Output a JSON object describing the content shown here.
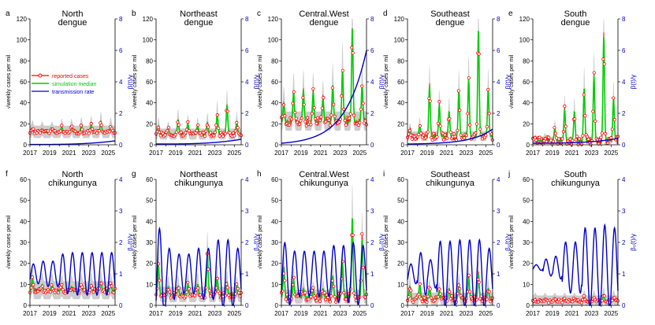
{
  "figure": {
    "colors": {
      "reported": "#ff0000",
      "marker_fill": "#ffffff",
      "median": "#00cc00",
      "transmission": "#0000cc",
      "band": "#cccccc",
      "axis": "#000000",
      "right_axis": "#0000cc"
    },
    "legend": {
      "reported": "reported cases",
      "median": "simulation median",
      "transmission": "transmission rate"
    }
  },
  "chart_data": [
    {
      "type": "line",
      "letter": "a",
      "region": "North",
      "disease": "dengue",
      "xlabel": "",
      "ylabel": "√weekly cases per mil",
      "ylabel_right": "β(t)/γ",
      "xticks": [
        "2017",
        "2019",
        "2021",
        "2023",
        "2025"
      ],
      "xlim": [
        2017,
        2025.7
      ],
      "ylim": [
        0,
        120
      ],
      "yticks": [
        0,
        20,
        40,
        60,
        80,
        100,
        120
      ],
      "ylim_right": [
        0,
        8
      ],
      "yticks_right": [
        0,
        2,
        4,
        6,
        8
      ],
      "series": [
        {
          "name": "reported cases",
          "base": 12,
          "amp": [
            4,
            3,
            3,
            5,
            5,
            6,
            7,
            10,
            6
          ],
          "noise": 1.5
        },
        {
          "name": "transmission rate",
          "shape": "flat",
          "start": 0.02,
          "end": 0.25
        }
      ]
    },
    {
      "type": "line",
      "letter": "b",
      "region": "Northeast",
      "disease": "dengue",
      "xlabel": "",
      "ylabel": "√weekly cases per mil",
      "ylabel_right": "β(t)/γ",
      "xticks": [
        "2017",
        "2019",
        "2021",
        "2023",
        "2025"
      ],
      "xlim": [
        2017,
        2025.7
      ],
      "ylim": [
        0,
        120
      ],
      "yticks": [
        0,
        20,
        40,
        60,
        80,
        100,
        120
      ],
      "ylim_right": [
        0,
        8
      ],
      "yticks_right": [
        0,
        2,
        4,
        6,
        8
      ],
      "series": [
        {
          "name": "reported cases",
          "base": 10,
          "amp": [
            8,
            5,
            14,
            10,
            8,
            11,
            20,
            28,
            12
          ],
          "noise": 2
        },
        {
          "name": "transmission rate",
          "shape": "flat",
          "start": 0.05,
          "end": 0.35
        }
      ]
    },
    {
      "type": "line",
      "letter": "c",
      "region": "Central.West",
      "disease": "dengue",
      "xlabel": "",
      "ylabel": "√weekly cases per mil",
      "ylabel_right": "β(t)/γ",
      "xticks": [
        "2017",
        "2019",
        "2021",
        "2023",
        "2025"
      ],
      "xlim": [
        2017,
        2025.7
      ],
      "ylim": [
        0,
        120
      ],
      "yticks": [
        0,
        20,
        40,
        60,
        80,
        100,
        120
      ],
      "ylim_right": [
        0,
        8
      ],
      "yticks_right": [
        0,
        2,
        4,
        6,
        8
      ],
      "series": [
        {
          "name": "reported cases",
          "base": 22,
          "amp": [
            18,
            28,
            30,
            28,
            22,
            35,
            50,
            90,
            35
          ],
          "noise": 4
        },
        {
          "name": "transmission rate",
          "shape": "exp",
          "start": 0.1,
          "end": 6.0
        }
      ]
    },
    {
      "type": "line",
      "letter": "d",
      "region": "Southeast",
      "disease": "dengue",
      "xlabel": "",
      "ylabel": "√weekly cases per mil",
      "ylabel_right": "β(t)/γ",
      "xticks": [
        "2017",
        "2019",
        "2021",
        "2023",
        "2025"
      ],
      "xlim": [
        2017,
        2025.7
      ],
      "ylim": [
        0,
        120
      ],
      "yticks": [
        0,
        20,
        40,
        60,
        80,
        100,
        120
      ],
      "ylim_right": [
        0,
        8
      ],
      "yticks_right": [
        0,
        2,
        4,
        6,
        8
      ],
      "series": [
        {
          "name": "reported cases",
          "base": 8,
          "amp": [
            6,
            10,
            48,
            30,
            24,
            44,
            55,
            102,
            45
          ],
          "noise": 4
        },
        {
          "name": "transmission rate",
          "shape": "exp",
          "start": 0.05,
          "end": 1.0
        }
      ]
    },
    {
      "type": "line",
      "letter": "e",
      "region": "South",
      "disease": "dengue",
      "xlabel": "",
      "ylabel": "√weekly cases per mil",
      "ylabel_right": "β(t)/γ",
      "xticks": [
        "2017",
        "2019",
        "2021",
        "2023",
        "2025"
      ],
      "xlim": [
        2017,
        2025.7
      ],
      "ylim": [
        0,
        120
      ],
      "yticks": [
        0,
        20,
        40,
        60,
        80,
        100,
        120
      ],
      "ylim_right": [
        0,
        8
      ],
      "yticks_right": [
        0,
        2,
        4,
        6,
        8
      ],
      "series": [
        {
          "name": "reported cases",
          "base": 4,
          "amp": [
            2,
            3,
            12,
            30,
            28,
            50,
            62,
            100,
            40
          ],
          "noise": 4
        },
        {
          "name": "transmission rate",
          "shape": "flat",
          "start": 0.1,
          "end": 0.4
        }
      ]
    },
    {
      "type": "line",
      "letter": "f",
      "region": "North",
      "disease": "chikungunya",
      "xlabel": "",
      "ylabel": "√weekly cases per mil",
      "ylabel_right": "β₀(t)/γ",
      "xticks": [
        "2017",
        "2019",
        "2021",
        "2023",
        "2025"
      ],
      "xlim": [
        2017,
        2025.7
      ],
      "ylim": [
        0,
        60
      ],
      "yticks": [
        0,
        10,
        20,
        30,
        40,
        50,
        60
      ],
      "ylim_right": [
        0,
        4
      ],
      "yticks_right": [
        0,
        1,
        2,
        3,
        4
      ],
      "series": [
        {
          "name": "reported cases",
          "base": 7,
          "amp": [
            6,
            3,
            3,
            2,
            2,
            3,
            3,
            4,
            3
          ],
          "noise": 1.2
        },
        {
          "name": "transmission rate",
          "shape": "osc",
          "base": 1.0,
          "amp": [
            0.35,
            0.45,
            0.45,
            0.7,
            0.75,
            0.75,
            0.75,
            0.75,
            0.75
          ]
        }
      ]
    },
    {
      "type": "line",
      "letter": "g",
      "region": "Northeast",
      "disease": "chikungunya",
      "xlabel": "",
      "ylabel": "√weekly cases per mil",
      "ylabel_right": "β₀(t)/γ",
      "xticks": [
        "2017",
        "2019",
        "2021",
        "2023",
        "2025"
      ],
      "xlim": [
        2017,
        2025.7
      ],
      "ylim": [
        0,
        60
      ],
      "yticks": [
        0,
        10,
        20,
        30,
        40,
        50,
        60
      ],
      "ylim_right": [
        0,
        4
      ],
      "yticks_right": [
        0,
        1,
        2,
        3,
        4
      ],
      "series": [
        {
          "name": "reported cases",
          "base": 5,
          "amp": [
            14,
            4,
            4,
            5,
            5,
            20,
            8,
            6,
            4
          ],
          "noise": 1.5
        },
        {
          "name": "transmission rate",
          "shape": "osc",
          "base": 1.0,
          "amp": [
            1.6,
            0.9,
            0.7,
            0.7,
            0.9,
            0.9,
            1.2,
            1.2,
            0.9
          ]
        }
      ]
    },
    {
      "type": "line",
      "letter": "h",
      "region": "Central.West",
      "disease": "chikungunya",
      "xlabel": "",
      "ylabel": "√weekly cases per mil",
      "ylabel_right": "β₀(t)/γ",
      "xticks": [
        "2017",
        "2019",
        "2021",
        "2023",
        "2025"
      ],
      "xlim": [
        2017,
        2025.7
      ],
      "ylim": [
        0,
        60
      ],
      "yticks": [
        0,
        10,
        20,
        30,
        40,
        50,
        60
      ],
      "ylim_right": [
        0,
        4
      ],
      "yticks_right": [
        0,
        1,
        2,
        3,
        4
      ],
      "series": [
        {
          "name": "reported cases",
          "base": 4,
          "amp": [
            14,
            8,
            4,
            3,
            4,
            10,
            16,
            38,
            28
          ],
          "noise": 2.5
        },
        {
          "name": "transmission rate",
          "shape": "osc",
          "base": 1.0,
          "amp": [
            1.1,
            0.8,
            0.8,
            0.8,
            0.8,
            1.0,
            1.0,
            1.1,
            1.0
          ]
        }
      ]
    },
    {
      "type": "line",
      "letter": "i",
      "region": "Southeast",
      "disease": "chikungunya",
      "xlabel": "",
      "ylabel": "√weekly cases per mil",
      "ylabel_right": "β₀(t)/γ",
      "xticks": [
        "2017",
        "2019",
        "2021",
        "2023",
        "2025"
      ],
      "xlim": [
        2017,
        2025.7
      ],
      "ylim": [
        0,
        60
      ],
      "yticks": [
        0,
        10,
        20,
        30,
        40,
        50,
        60
      ],
      "ylim_right": [
        0,
        4
      ],
      "yticks_right": [
        0,
        1,
        2,
        3,
        4
      ],
      "series": [
        {
          "name": "reported cases",
          "base": 3,
          "amp": [
            6,
            7,
            5,
            4,
            5,
            7,
            10,
            12,
            5
          ],
          "noise": 1.5
        },
        {
          "name": "transmission rate",
          "shape": "osc",
          "base": 1.0,
          "amp": [
            0.35,
            0.75,
            0.5,
            1.15,
            1.15,
            1.2,
            1.2,
            1.2,
            0.9
          ]
        }
      ]
    },
    {
      "type": "line",
      "letter": "j",
      "region": "South",
      "disease": "chikungunya",
      "xlabel": "",
      "ylabel": "√weekly cases per mil",
      "ylabel_right": "β₀(t)/γ",
      "xticks": [
        "2017",
        "2019",
        "2021",
        "2023",
        "2025"
      ],
      "xlim": [
        2017,
        2025.7
      ],
      "ylim": [
        0,
        60
      ],
      "yticks": [
        0,
        10,
        20,
        30,
        40,
        50,
        60
      ],
      "ylim_right": [
        0,
        4
      ],
      "yticks_right": [
        0,
        1,
        2,
        3,
        4
      ],
      "series": [
        {
          "name": "reported cases",
          "base": 2,
          "amp": [
            1,
            1,
            1,
            1,
            1,
            2,
            2,
            3,
            2
          ],
          "noise": 0.8
        },
        {
          "name": "transmission rate",
          "shape": "osc",
          "base": 1.2,
          "amp": [
            0.1,
            0.3,
            0.4,
            0.9,
            0.9,
            1.4,
            1.4,
            1.5,
            1.4
          ]
        }
      ]
    }
  ]
}
